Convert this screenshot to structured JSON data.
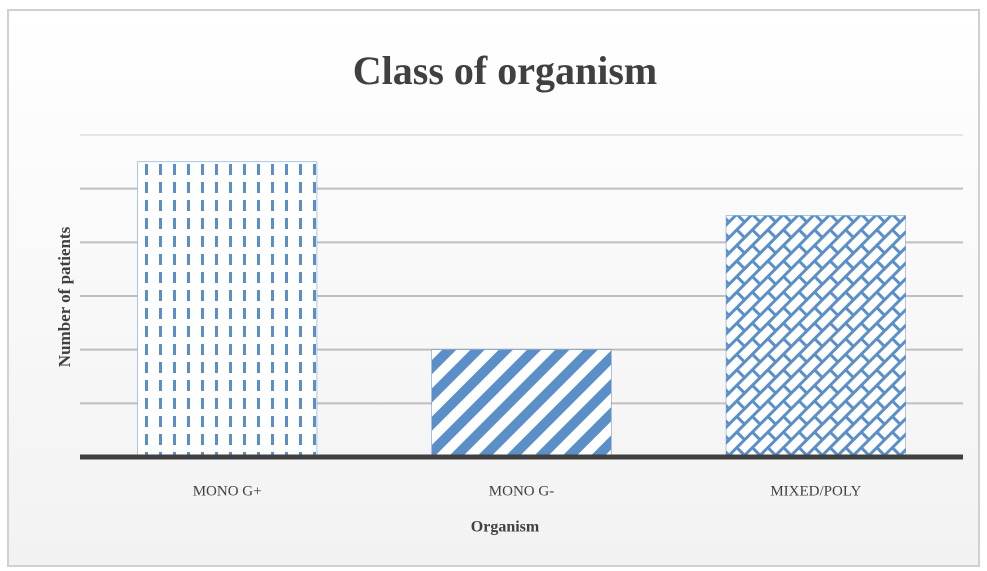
{
  "chart_data": {
    "type": "bar",
    "title": "Class of organism",
    "x_label": "Organism",
    "y_label": "Number of patients",
    "categories": [
      "MONO G+",
      "MONO G-",
      "MIXED/POLY"
    ],
    "values": [
      5.5,
      2,
      4.5
    ],
    "color": "#5b8fc7",
    "patterns": [
      "dashed-vertical",
      "diagonal",
      "brick"
    ],
    "ylim": [
      0,
      6
    ],
    "yticks": [
      0,
      1,
      2,
      3,
      4,
      5,
      6
    ],
    "grid": true
  }
}
